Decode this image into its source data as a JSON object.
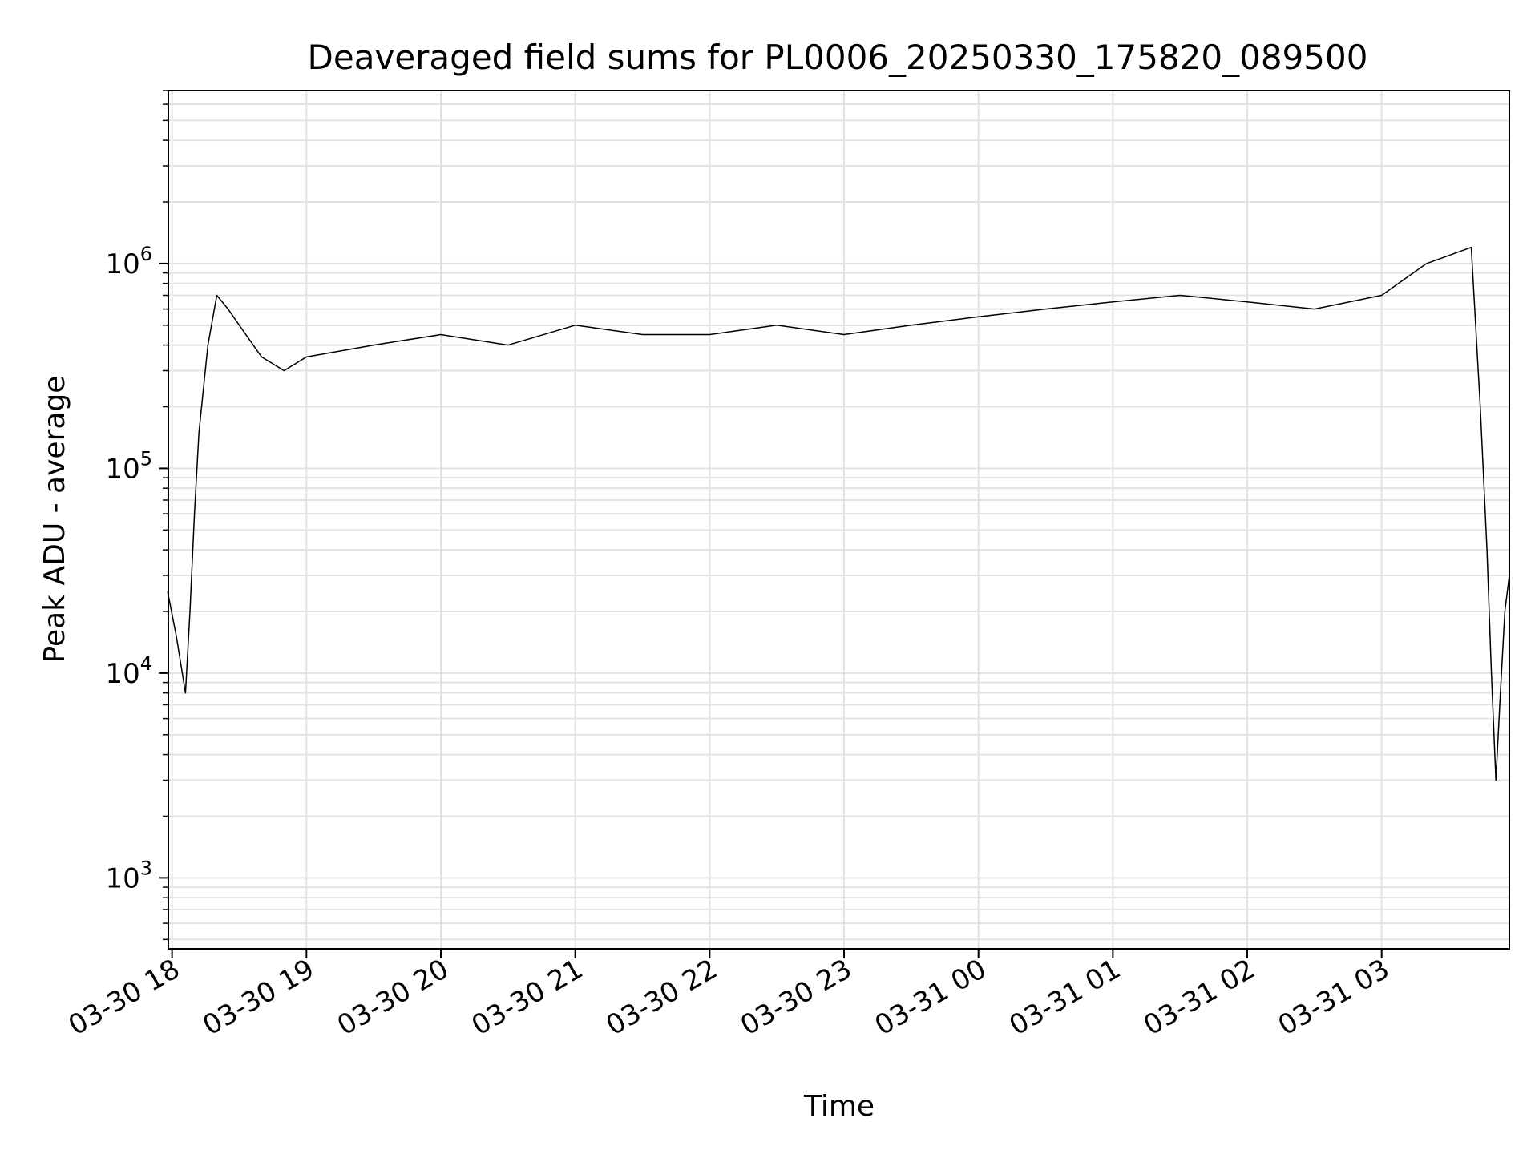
{
  "chart_data": {
    "type": "line",
    "title": "Deaveraged field sums for PL0006_20250330_175820_089500",
    "xlabel": "Time",
    "ylabel": "Peak ADU - average",
    "x_scale": "time",
    "y_scale": "log",
    "xlim": [
      "2025-03-30T17:58:20",
      "2025-03-31T03:57:00"
    ],
    "ylim": [
      450,
      7000000
    ],
    "x_tick_labels": [
      "03-30 18",
      "03-30 19",
      "03-30 20",
      "03-30 21",
      "03-30 22",
      "03-30 23",
      "03-31 00",
      "03-31 01",
      "03-31 02",
      "03-31 03"
    ],
    "x_tick_times": [
      "2025-03-30T18:00",
      "2025-03-30T19:00",
      "2025-03-30T20:00",
      "2025-03-30T21:00",
      "2025-03-30T22:00",
      "2025-03-30T23:00",
      "2025-03-31T00:00",
      "2025-03-31T01:00",
      "2025-03-31T02:00",
      "2025-03-31T03:00"
    ],
    "y_ticks": [
      {
        "base": "10",
        "exp": "3",
        "value": 1000
      },
      {
        "base": "10",
        "exp": "4",
        "value": 10000
      },
      {
        "base": "10",
        "exp": "5",
        "value": 100000
      },
      {
        "base": "10",
        "exp": "6",
        "value": 1000000
      }
    ],
    "grid": true,
    "line_color": "#000000",
    "grid_color": "#e3e3e3",
    "series": [
      {
        "x": [
          "2025-03-30T17:58",
          "2025-03-30T18:02",
          "2025-03-30T18:06",
          "2025-03-30T18:08",
          "2025-03-30T18:10",
          "2025-03-30T18:12",
          "2025-03-30T18:16",
          "2025-03-30T18:20",
          "2025-03-30T18:25",
          "2025-03-30T18:30",
          "2025-03-30T18:40",
          "2025-03-30T18:50",
          "2025-03-30T19:00",
          "2025-03-30T19:30",
          "2025-03-30T20:00",
          "2025-03-30T20:30",
          "2025-03-30T21:00",
          "2025-03-30T21:30",
          "2025-03-30T22:00",
          "2025-03-30T22:30",
          "2025-03-30T23:00",
          "2025-03-30T23:30",
          "2025-03-31T00:00",
          "2025-03-31T00:30",
          "2025-03-31T01:00",
          "2025-03-31T01:30",
          "2025-03-31T02:00",
          "2025-03-31T02:30",
          "2025-03-31T03:00",
          "2025-03-31T03:20",
          "2025-03-31T03:40",
          "2025-03-31T03:44",
          "2025-03-31T03:47",
          "2025-03-31T03:49",
          "2025-03-31T03:51",
          "2025-03-31T03:53",
          "2025-03-31T03:55",
          "2025-03-31T03:57"
        ],
        "y": [
          25000,
          15000,
          8000,
          20000,
          60000,
          150000,
          400000,
          700000,
          600000,
          500000,
          350000,
          300000,
          350000,
          400000,
          450000,
          400000,
          500000,
          450000,
          450000,
          500000,
          450000,
          500000,
          550000,
          600000,
          650000,
          700000,
          650000,
          600000,
          700000,
          1000000,
          1200000,
          200000,
          40000,
          10000,
          3000,
          8000,
          20000,
          30000
        ]
      }
    ]
  }
}
